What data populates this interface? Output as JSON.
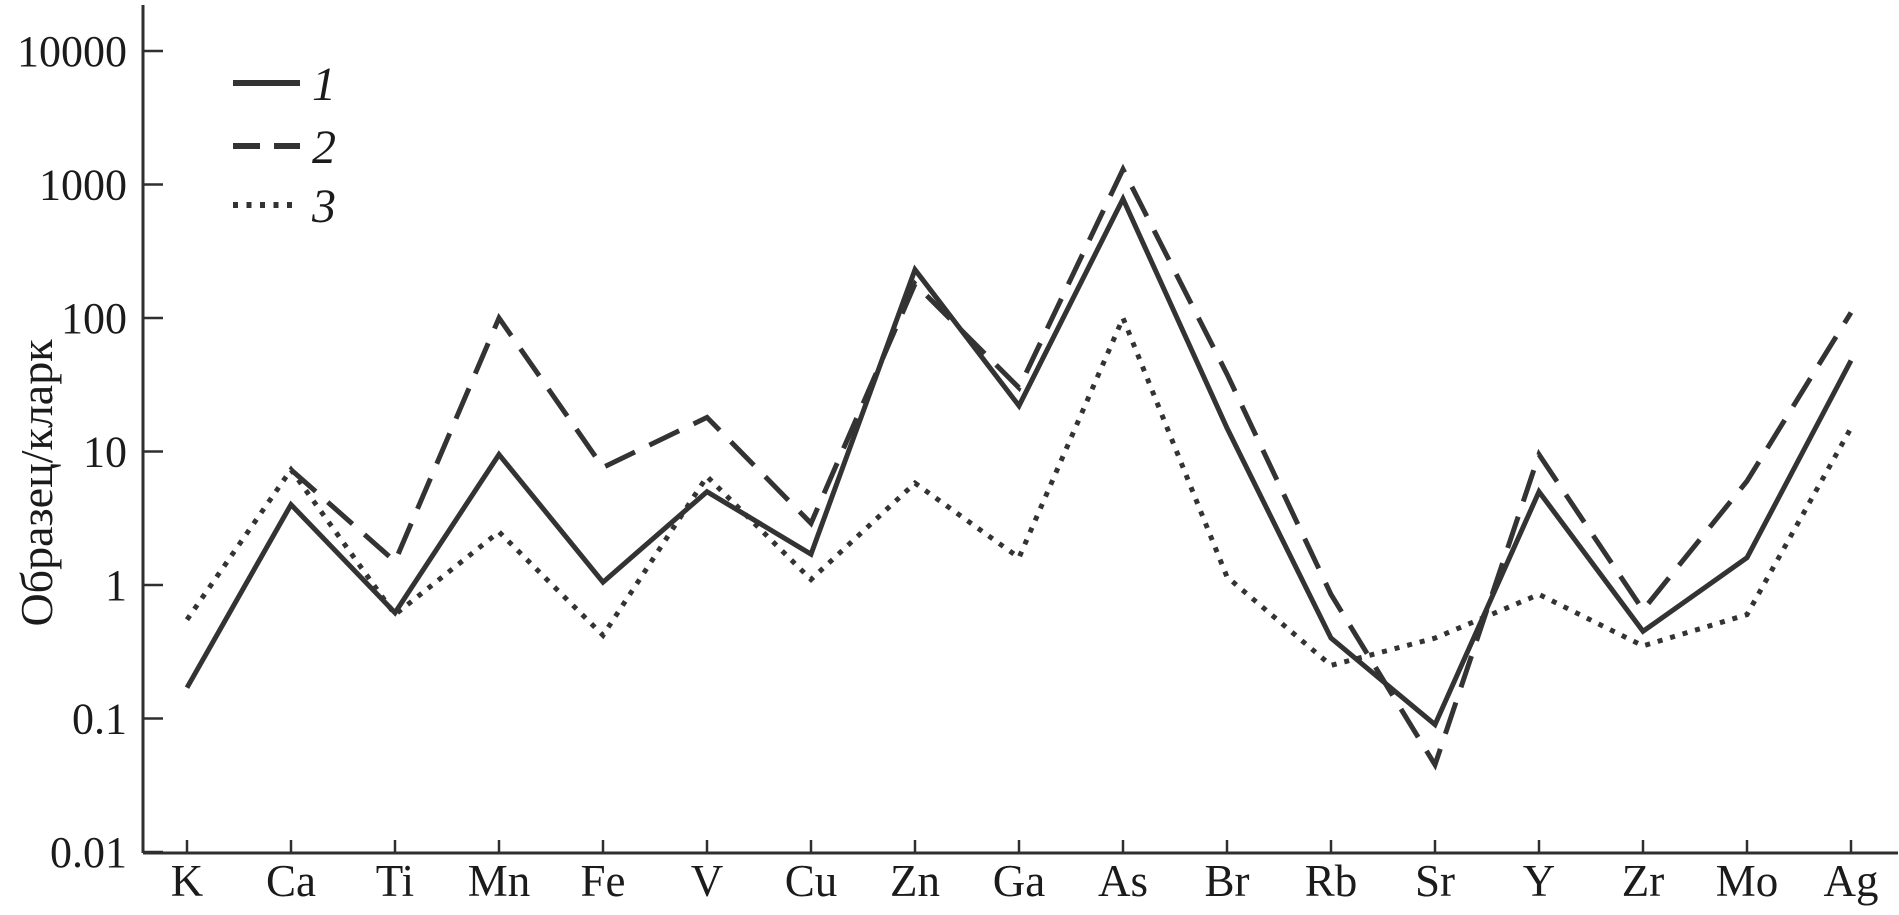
{
  "chart_data": {
    "type": "line",
    "title": "",
    "ylabel": "Образец/кларк",
    "xlabel": "",
    "y_scale": "log",
    "ylim": [
      0.01,
      20000
    ],
    "grid": false,
    "legend_position": "top-left",
    "line_color": "#333333",
    "categories": [
      "K",
      "Ca",
      "Ti",
      "Mn",
      "Fe",
      "V",
      "Cu",
      "Zn",
      "Ga",
      "As",
      "Br",
      "Rb",
      "Sr",
      "Y",
      "Zr",
      "Mo",
      "Ag"
    ],
    "y_ticks": [
      10000,
      1000,
      100,
      10,
      1,
      0.1,
      0.01
    ],
    "y_tick_labels": [
      "10000",
      "1000",
      "100",
      "10",
      "1",
      "0.1",
      "0.01"
    ],
    "series": [
      {
        "name": "1",
        "style": "solid",
        "values": [
          0.17,
          4,
          0.62,
          9.5,
          1.05,
          5,
          1.7,
          230,
          22,
          780,
          15,
          0.4,
          0.09,
          5,
          0.45,
          1.6,
          48
        ]
      },
      {
        "name": "2",
        "style": "dashed",
        "values": [
          null,
          7.3,
          1.5,
          100,
          7.6,
          18,
          2.9,
          180,
          30,
          1300,
          38,
          0.85,
          0.045,
          9.5,
          0.65,
          6,
          110
        ]
      },
      {
        "name": "3",
        "style": "dotted",
        "values": [
          0.55,
          7.3,
          0.6,
          2.5,
          0.42,
          6.5,
          1.1,
          5.8,
          1.6,
          100,
          1.15,
          0.25,
          0.4,
          0.85,
          0.35,
          0.6,
          15
        ]
      }
    ]
  },
  "legend": {
    "items": [
      {
        "label": "1",
        "style": "solid"
      },
      {
        "label": "2",
        "style": "dashed"
      },
      {
        "label": "3",
        "style": "dotted"
      }
    ]
  }
}
